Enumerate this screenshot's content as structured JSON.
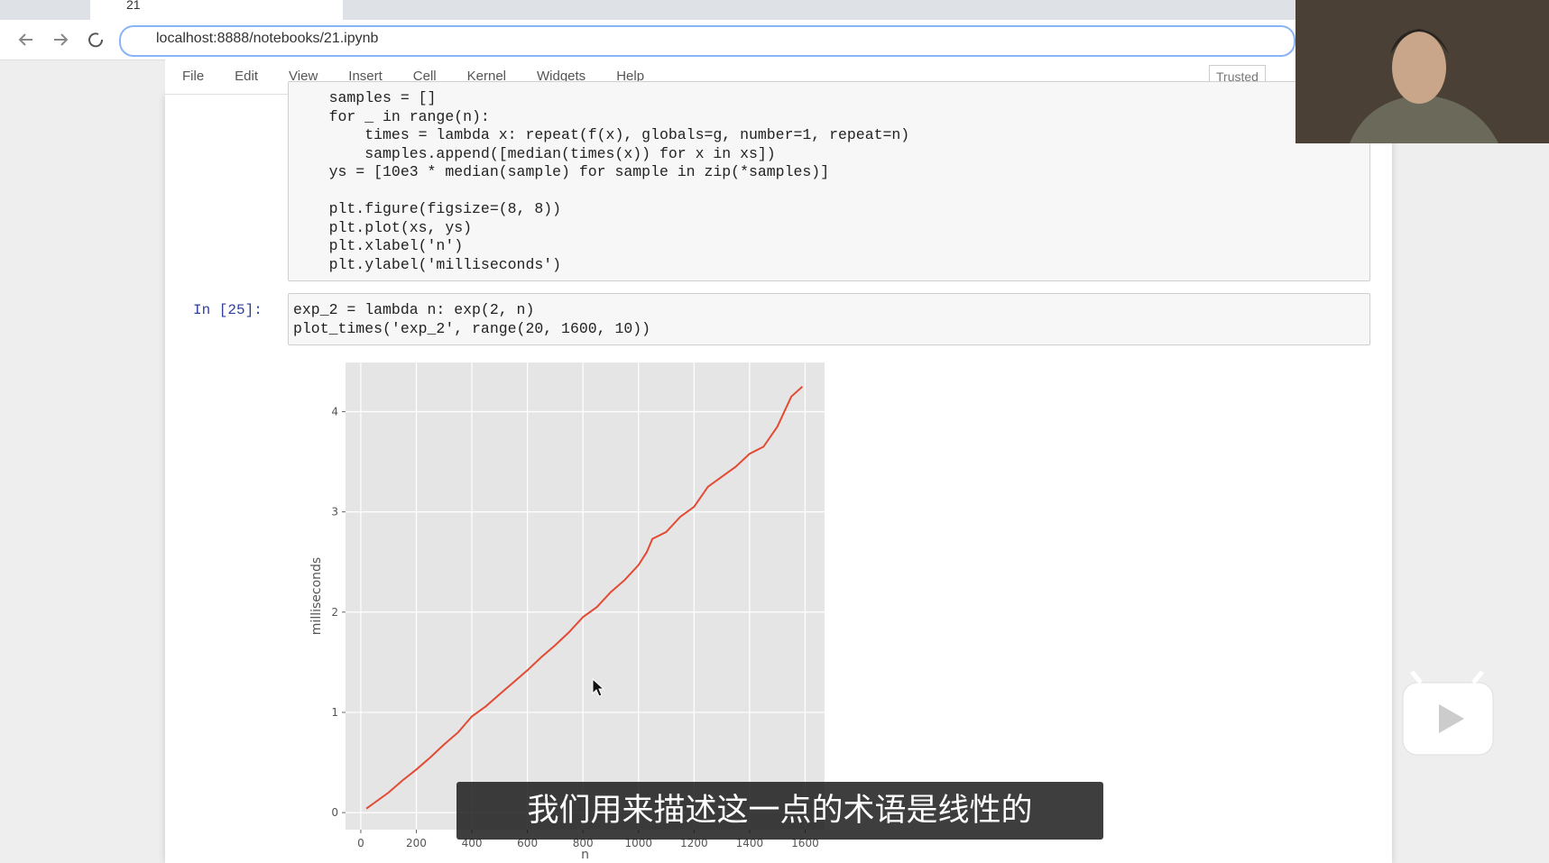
{
  "browser": {
    "tab_title": "21",
    "url": "localhost:8888/notebooks/21.ipynb"
  },
  "menu": [
    "File",
    "Edit",
    "View",
    "Insert",
    "Cell",
    "Kernel",
    "Widgets",
    "Help"
  ],
  "trusted": "Trusted",
  "cells": [
    {
      "paragraphs": [
        [
          "    samples = []",
          "    for _ in range(n):",
          "        times = lambda x: repeat(f(x), globals=g, number=1, repeat=n)",
          "        samples.append([median(times(x)) for x in xs])",
          "    ys = [10e3 * median(sample) for sample in zip(*samples)]"
        ],
        [
          "    plt.figure(figsize=(8, 8))",
          "    plt.plot(xs, ys)",
          "    plt.xlabel('n')",
          "    plt.ylabel('milliseconds')"
        ]
      ]
    },
    {
      "prompt": "In [25]:",
      "lines": [
        "exp_2 = lambda n: exp(2, n)",
        "plot_times('exp_2', range(20, 1600, 10))"
      ]
    }
  ],
  "chart_data": {
    "type": "line",
    "xlabel": "n",
    "ylabel": "milliseconds",
    "x": [
      20,
      50,
      100,
      150,
      200,
      250,
      300,
      350,
      400,
      450,
      500,
      550,
      600,
      650,
      700,
      750,
      800,
      850,
      900,
      950,
      1000,
      1030,
      1050,
      1100,
      1150,
      1200,
      1250,
      1300,
      1350,
      1400,
      1450,
      1500,
      1550,
      1590
    ],
    "values": [
      0.04,
      0.1,
      0.2,
      0.32,
      0.43,
      0.55,
      0.68,
      0.8,
      0.96,
      1.06,
      1.18,
      1.3,
      1.42,
      1.55,
      1.67,
      1.8,
      1.95,
      2.05,
      2.2,
      2.32,
      2.47,
      2.6,
      2.73,
      2.8,
      2.95,
      3.05,
      3.25,
      3.35,
      3.45,
      3.58,
      3.65,
      3.85,
      4.15,
      4.25
    ],
    "color": "#e24a33",
    "xlim": [
      -55,
      1670
    ],
    "ylim": [
      -0.17,
      4.49
    ],
    "xticks": [
      0,
      200,
      400,
      600,
      800,
      1000,
      1200,
      1400,
      1600
    ],
    "yticks": [
      0,
      1,
      2,
      3,
      4
    ],
    "grid": true
  },
  "subtitle": "我们用来描述这一点的术语是线性的"
}
